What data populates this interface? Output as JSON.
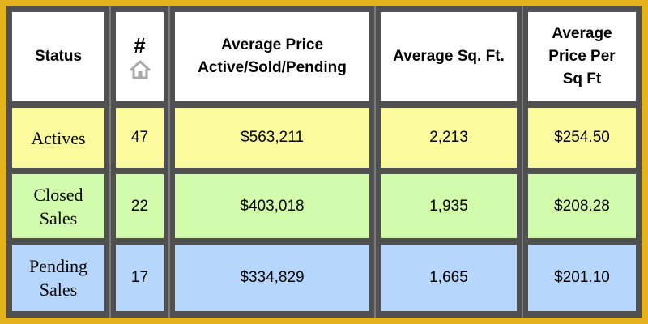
{
  "table": {
    "headers": {
      "status": "Status",
      "count": "#",
      "count_icon": "house-icon",
      "avg_price_line1": "Average Price",
      "avg_price_line2": "Active/Sold/Pending",
      "avg_sqft": "Average Sq. Ft.",
      "price_per_sqft_line1": "Average",
      "price_per_sqft_line2": "Price Per",
      "price_per_sqft_line3": "Sq Ft"
    },
    "rows": [
      {
        "status": "Actives",
        "status_line2": "",
        "count": "47",
        "avg_price": "$563,211",
        "avg_sqft": "2,213",
        "price_per_sqft": "$254.50",
        "color": "#fbfb9e"
      },
      {
        "status": "Closed",
        "status_line2": "Sales",
        "count": "22",
        "avg_price": "$403,018",
        "avg_sqft": "1,935",
        "price_per_sqft": "$208.28",
        "color": "#d2fbac"
      },
      {
        "status": "Pending",
        "status_line2": "Sales",
        "count": "17",
        "avg_price": "$334,829",
        "avg_sqft": "1,665",
        "price_per_sqft": "$201.10",
        "color": "#b7d6fb"
      }
    ]
  },
  "colors": {
    "border": "#e3b21c",
    "grid": "#505050",
    "header_bg": "#ffffff",
    "house_icon": "#a9a9a9"
  }
}
